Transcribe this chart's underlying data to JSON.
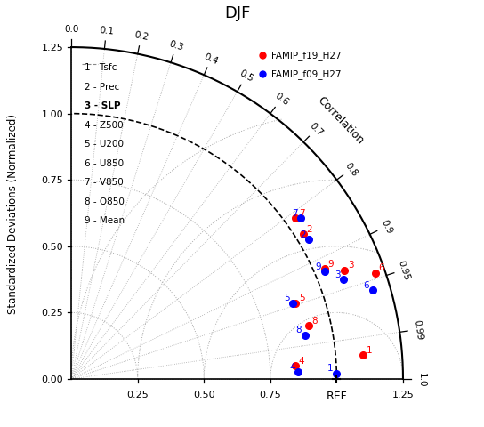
{
  "title": "DJF",
  "xlabel": "REF",
  "ylabel": "Standardized Deviations (Normalized)",
  "corr_label": "Correlation",
  "max_std": 1.25,
  "ref_std": 1.0,
  "correlation_ticks": [
    0.0,
    0.1,
    0.2,
    0.3,
    0.4,
    0.5,
    0.6,
    0.7,
    0.8,
    0.9,
    0.95,
    0.99,
    1.0
  ],
  "std_ticks": [
    0.0,
    0.25,
    0.5,
    0.75,
    1.0,
    1.25
  ],
  "legend_entries": [
    "FAMIP_f19_H27",
    "FAMIP_f09_H27"
  ],
  "legend_colors": [
    "red",
    "blue"
  ],
  "variable_labels": [
    "1 - Tsfc",
    "2 - Prec",
    "3 - SLP",
    "4 - Z500",
    "5 - U200",
    "6 - U850",
    "7 - V850",
    "8 - Q850",
    "9 - Mean"
  ],
  "points_red": {
    "1": [
      1.1,
      0.09
    ],
    "2": [
      0.875,
      0.545
    ],
    "3": [
      1.03,
      0.41
    ],
    "4": [
      0.845,
      0.05
    ],
    "5": [
      0.845,
      0.285
    ],
    "6": [
      1.145,
      0.4
    ],
    "7": [
      0.845,
      0.605
    ],
    "8": [
      0.895,
      0.2
    ],
    "9": [
      0.955,
      0.415
    ]
  },
  "points_blue": {
    "1": [
      1.0,
      0.02
    ],
    "2": [
      0.895,
      0.525
    ],
    "3": [
      1.025,
      0.375
    ],
    "4": [
      0.855,
      0.025
    ],
    "5": [
      0.835,
      0.285
    ],
    "6": [
      1.135,
      0.335
    ],
    "7": [
      0.865,
      0.605
    ],
    "8": [
      0.88,
      0.165
    ],
    "9": [
      0.955,
      0.405
    ]
  },
  "background_color": "white"
}
